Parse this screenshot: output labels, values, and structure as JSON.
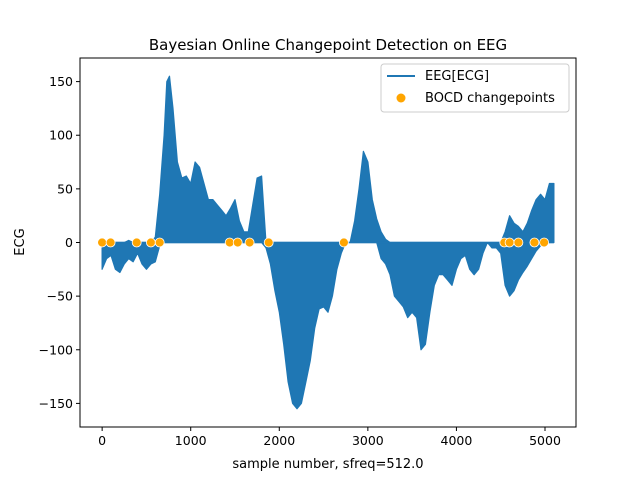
{
  "chart_data": {
    "type": "line",
    "title": "Bayesian Online Changepoint Detection on EEG",
    "xlabel": "sample number, sfreq=512.0",
    "ylabel": "ECG",
    "xlim": [
      -250,
      5350
    ],
    "ylim": [
      -172,
      172
    ],
    "xticks": [
      0,
      1000,
      2000,
      3000,
      4000,
      5000
    ],
    "yticks": [
      -150,
      -100,
      -50,
      0,
      50,
      100,
      150
    ],
    "grid": false,
    "legend_position": "top-right",
    "colors": {
      "line": "#1f77b4",
      "points": "#ffa500"
    },
    "series": [
      {
        "name": "EEG[ECG]",
        "kind": "filled_oscillation",
        "x": [
          0,
          50,
          100,
          150,
          200,
          250,
          300,
          350,
          400,
          450,
          500,
          550,
          600,
          650,
          700,
          730,
          760,
          800,
          850,
          900,
          950,
          1000,
          1050,
          1100,
          1150,
          1200,
          1250,
          1300,
          1350,
          1400,
          1450,
          1500,
          1550,
          1600,
          1650,
          1700,
          1750,
          1800,
          1850,
          1900,
          1950,
          2000,
          2050,
          2100,
          2150,
          2200,
          2250,
          2300,
          2350,
          2400,
          2450,
          2500,
          2550,
          2600,
          2650,
          2700,
          2750,
          2800,
          2850,
          2900,
          2950,
          3000,
          3050,
          3100,
          3150,
          3200,
          3250,
          3300,
          3350,
          3400,
          3450,
          3500,
          3550,
          3600,
          3650,
          3700,
          3750,
          3800,
          3850,
          3900,
          3950,
          4000,
          4050,
          4100,
          4150,
          4200,
          4250,
          4300,
          4350,
          4400,
          4450,
          4500,
          4550,
          4600,
          4650,
          4700,
          4750,
          4800,
          4850,
          4900,
          4950,
          5000,
          5050,
          5100
        ],
        "upper": [
          -5,
          0,
          0,
          0,
          0,
          0,
          2,
          0,
          0,
          0,
          0,
          0,
          5,
          45,
          100,
          150,
          155,
          125,
          75,
          60,
          62,
          55,
          75,
          70,
          55,
          40,
          40,
          35,
          30,
          25,
          32,
          40,
          20,
          10,
          10,
          35,
          60,
          62,
          0,
          0,
          0,
          0,
          0,
          0,
          0,
          0,
          0,
          0,
          0,
          0,
          0,
          0,
          0,
          0,
          0,
          0,
          0,
          0,
          20,
          50,
          85,
          75,
          40,
          22,
          10,
          3,
          0,
          0,
          0,
          0,
          0,
          0,
          0,
          0,
          0,
          0,
          0,
          0,
          0,
          0,
          0,
          0,
          0,
          0,
          0,
          0,
          0,
          0,
          0,
          0,
          0,
          0,
          10,
          25,
          18,
          15,
          10,
          18,
          30,
          40,
          45,
          40,
          55,
          55
        ],
        "lower": [
          -25,
          -15,
          -12,
          -25,
          -28,
          -20,
          -15,
          -18,
          -10,
          -20,
          -25,
          -20,
          -18,
          -3,
          0,
          0,
          0,
          0,
          0,
          0,
          0,
          0,
          0,
          0,
          0,
          0,
          0,
          0,
          0,
          0,
          0,
          0,
          0,
          0,
          0,
          0,
          0,
          0,
          -5,
          -20,
          -45,
          -65,
          -95,
          -130,
          -150,
          -155,
          -150,
          -130,
          -110,
          -80,
          -62,
          -60,
          -65,
          -50,
          -25,
          -10,
          0,
          0,
          0,
          0,
          0,
          0,
          0,
          0,
          -15,
          -20,
          -30,
          -50,
          -55,
          -60,
          -70,
          -65,
          -70,
          -100,
          -95,
          -65,
          -40,
          -30,
          -30,
          -35,
          -40,
          -25,
          -15,
          -12,
          -25,
          -30,
          -25,
          -10,
          0,
          -5,
          -5,
          -10,
          -40,
          -50,
          -45,
          -35,
          -28,
          -22,
          -15,
          -8,
          -3,
          -2,
          0,
          0
        ]
      },
      {
        "name": "BOCD changepoints",
        "kind": "scatter",
        "x": [
          0,
          95,
          390,
          550,
          650,
          1440,
          1530,
          1665,
          1880,
          2730,
          4540,
          4600,
          4700,
          4880,
          4990
        ],
        "y": [
          0,
          0,
          0,
          0,
          0,
          0,
          0,
          0,
          0,
          0,
          0,
          0,
          0,
          0,
          0
        ]
      }
    ]
  }
}
